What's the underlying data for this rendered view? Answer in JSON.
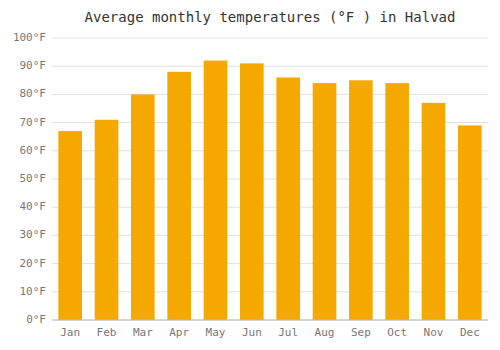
{
  "chart_data": {
    "type": "bar",
    "title": "Average monthly temperatures (°F ) in Halvad",
    "categories": [
      "Jan",
      "Feb",
      "Mar",
      "Apr",
      "May",
      "Jun",
      "Jul",
      "Aug",
      "Sep",
      "Oct",
      "Nov",
      "Dec"
    ],
    "values": [
      67,
      71,
      80,
      88,
      92,
      91,
      86,
      84,
      85,
      84,
      77,
      69
    ],
    "color": "#F5A800",
    "ylim": [
      0,
      100
    ],
    "yticks": [
      {
        "value": 0,
        "label": "0°F"
      },
      {
        "value": 10,
        "label": "10°F"
      },
      {
        "value": 20,
        "label": "20°F"
      },
      {
        "value": 30,
        "label": "30°F"
      },
      {
        "value": 40,
        "label": "40°F"
      },
      {
        "value": 50,
        "label": "50°F"
      },
      {
        "value": 60,
        "label": "60°F"
      },
      {
        "value": 70,
        "label": "70°F"
      },
      {
        "value": 80,
        "label": "80°F"
      },
      {
        "value": 90,
        "label": "90°F"
      },
      {
        "value": 100,
        "label": "100°F"
      }
    ],
    "grid": true
  }
}
